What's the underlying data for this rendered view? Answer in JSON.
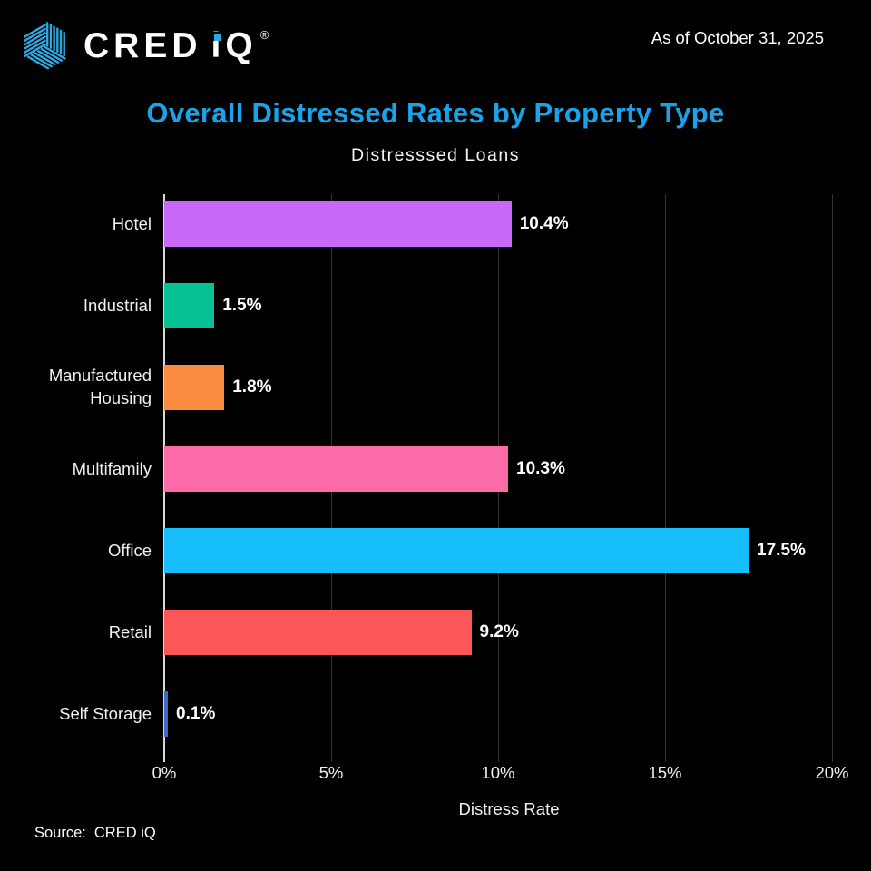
{
  "header": {
    "logo": {
      "wordmark": "CRED iQ",
      "cred": "CRED",
      "i": "i",
      "q": "Q",
      "registered": "®"
    },
    "as_of": "As of October 31, 2025"
  },
  "chart_data": {
    "type": "bar",
    "orientation": "horizontal",
    "title": "Overall Distressed Rates by Property Type",
    "subtitle": "Distresssed Loans",
    "xlabel": "Distress Rate",
    "xlim": [
      0,
      20
    ],
    "grid": true,
    "legend": "none",
    "categories": [
      "Hotel",
      "Industrial",
      "Manufactured Housing",
      "Multifamily",
      "Office",
      "Retail",
      "Self Storage"
    ],
    "values": [
      10.4,
      1.5,
      1.8,
      10.3,
      17.5,
      9.2,
      0.1
    ],
    "value_labels": [
      "10.4%",
      "1.5%",
      "1.8%",
      "10.3%",
      "17.5%",
      "9.2%",
      "0.1%"
    ],
    "bar_colors": [
      "#c969fa",
      "#06c295",
      "#fb8d41",
      "#fc6aa8",
      "#16befb",
      "#fc5658",
      "#3d6bc5"
    ],
    "xticks": [
      {
        "value": 0,
        "label": "0%"
      },
      {
        "value": 5,
        "label": "5%"
      },
      {
        "value": 10,
        "label": "10%"
      },
      {
        "value": 15,
        "label": "15%"
      },
      {
        "value": 20,
        "label": "20%"
      }
    ]
  },
  "footer": {
    "source_label": "Source:",
    "source_value": "CRED iQ"
  },
  "colors": {
    "background": "#000000",
    "title": "#1aa3e8",
    "logo_blue": "#2fa8df",
    "axis_line": "#d9d9d9",
    "gridline": "#333333"
  }
}
